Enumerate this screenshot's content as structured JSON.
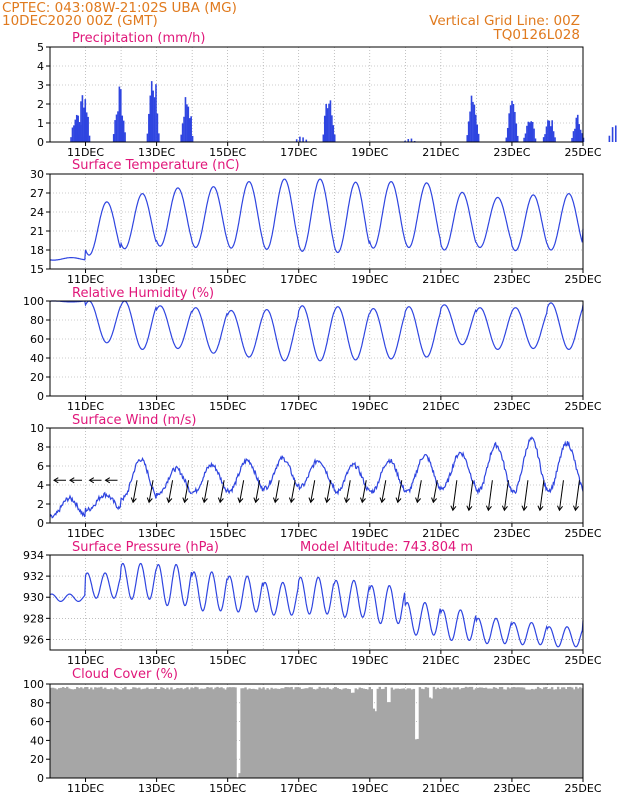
{
  "header": {
    "line1": "CPTEC:   043:08W-21:02S   UBA (MG)",
    "line2": "10DEC2020 00Z (GMT)",
    "right1": "Vertical Grid Line: 00Z",
    "right2": "TQ0126L028"
  },
  "colors": {
    "accent": "#e07a1e",
    "title": "#e0177a",
    "series": "#2f45e0",
    "cloud": "#a6a6a6"
  },
  "chart_data": [
    {
      "type": "bar",
      "title": "Precipitation (mm/h)",
      "ylim": [
        0,
        5
      ],
      "yticks": [
        0,
        1,
        2,
        3,
        4,
        5
      ],
      "xticks": [
        "11DEC",
        "13DEC",
        "15DEC",
        "17DEC",
        "19DEC",
        "21DEC",
        "23DEC",
        "25DEC"
      ],
      "x_days": [
        0,
        15
      ],
      "bursts": [
        {
          "day": 0.75,
          "peak": 1.9
        },
        {
          "day": 0.95,
          "peak": 3.1
        },
        {
          "day": 1.95,
          "peak": 3.0
        },
        {
          "day": 2.9,
          "peak": 4.0
        },
        {
          "day": 3.85,
          "peak": 2.8
        },
        {
          "day": 7.1,
          "peak": 0.4
        },
        {
          "day": 7.85,
          "peak": 3.1
        },
        {
          "day": 10.15,
          "peak": 0.2
        },
        {
          "day": 11.9,
          "peak": 2.8
        },
        {
          "day": 13.0,
          "peak": 2.2
        },
        {
          "day": 13.5,
          "peak": 1.6
        },
        {
          "day": 14.05,
          "peak": 1.5
        },
        {
          "day": 14.85,
          "peak": 1.5
        },
        {
          "day": 15.9,
          "peak": 1.0
        },
        {
          "day": 16.85,
          "peak": 0.9
        },
        {
          "day": 18.0,
          "peak": 2.2
        },
        {
          "day": 19.3,
          "peak": 1.4
        },
        {
          "day": 19.95,
          "peak": 0.9
        },
        {
          "day": 21.9,
          "peak": 1.9
        },
        {
          "day": 22.9,
          "peak": 1.1
        },
        {
          "day": 23.5,
          "peak": 0.8
        },
        {
          "day": 24.9,
          "peak": 1.8
        }
      ]
    },
    {
      "type": "line",
      "title": "Surface Temperature (nC)",
      "ylim": [
        15,
        30
      ],
      "yticks": [
        15,
        18,
        21,
        24,
        27,
        30
      ],
      "xticks": [
        "11DEC",
        "13DEC",
        "15DEC",
        "17DEC",
        "19DEC",
        "21DEC",
        "23DEC",
        "25DEC"
      ],
      "days": [
        0,
        15
      ],
      "daily_max": [
        16.8,
        25.6,
        26.9,
        27.8,
        28.0,
        28.8,
        29.2,
        29.2,
        28.7,
        28.8,
        28.6,
        27.1,
        26.3,
        26.7,
        26.9,
        26.6
      ],
      "daily_min": [
        16.4,
        17.2,
        18.2,
        18.6,
        18.4,
        18.3,
        18.1,
        17.8,
        17.6,
        18.3,
        18.4,
        18.0,
        18.4,
        17.9,
        18.0,
        20.8
      ]
    },
    {
      "type": "line",
      "title": "Relative Humidity (%)",
      "ylim": [
        0,
        100
      ],
      "yticks": [
        0,
        20,
        40,
        60,
        80,
        100
      ],
      "xticks": [
        "11DEC",
        "13DEC",
        "15DEC",
        "17DEC",
        "19DEC",
        "21DEC",
        "23DEC",
        "25DEC"
      ],
      "days": [
        0,
        15
      ],
      "daily_max": [
        100,
        100,
        100,
        95,
        93,
        90,
        91,
        95,
        94,
        92,
        94,
        96,
        93,
        93,
        98,
        100
      ],
      "daily_min": [
        99,
        56,
        49,
        50,
        45,
        41,
        37,
        37,
        38,
        39,
        41,
        54,
        49,
        50,
        49,
        60
      ]
    },
    {
      "type": "line",
      "title": "Surface Wind (m/s)",
      "ylim": [
        0,
        10
      ],
      "yticks": [
        0,
        2,
        4,
        6,
        8,
        10
      ],
      "xticks": [
        "11DEC",
        "13DEC",
        "15DEC",
        "17DEC",
        "19DEC",
        "21DEC",
        "23DEC",
        "25DEC"
      ],
      "days": [
        0,
        15
      ],
      "daily_max": [
        2.6,
        3.0,
        6.7,
        5.7,
        6.1,
        6.6,
        6.8,
        6.6,
        6.1,
        6.6,
        7.1,
        7.4,
        8.2,
        8.8,
        8.4,
        7.0
      ],
      "daily_min": [
        0.6,
        1.4,
        2.6,
        3.1,
        3.3,
        3.4,
        3.7,
        3.8,
        3.2,
        3.3,
        3.3,
        3.7,
        3.3,
        3.2,
        3.5,
        3.4
      ]
    },
    {
      "type": "line",
      "title": "Surface Pressure (hPa)",
      "annotation": "Model Altitude: 743.804 m",
      "ylim": [
        925,
        934
      ],
      "yticks": [
        926,
        928,
        930,
        932,
        934
      ],
      "xticks": [
        "11DEC",
        "13DEC",
        "15DEC",
        "17DEC",
        "19DEC",
        "21DEC",
        "23DEC",
        "25DEC"
      ],
      "days": [
        0,
        15
      ],
      "daily_max": [
        930.3,
        932.3,
        933.2,
        933.1,
        932.4,
        932.0,
        931.4,
        931.9,
        931.6,
        931.1,
        929.5,
        928.8,
        928.0,
        927.6,
        927.2,
        928.0
      ],
      "daily_min": [
        929.6,
        929.9,
        929.8,
        929.2,
        928.7,
        928.6,
        928.3,
        928.4,
        928.1,
        927.5,
        926.4,
        925.9,
        925.6,
        925.5,
        925.3,
        925.8
      ]
    },
    {
      "type": "area",
      "title": "Cloud Cover (%)",
      "ylim": [
        0,
        100
      ],
      "yticks": [
        0,
        20,
        40,
        60,
        80,
        100
      ],
      "xticks": [
        "11DEC",
        "13DEC",
        "15DEC",
        "17DEC",
        "19DEC",
        "21DEC",
        "23DEC",
        "25DEC"
      ],
      "days": [
        0,
        15
      ],
      "base_level": 97,
      "dips": [
        {
          "day": 5.25,
          "value": 0
        },
        {
          "day": 8.5,
          "value": 86
        },
        {
          "day": 9.1,
          "value": 70
        },
        {
          "day": 9.5,
          "value": 80
        },
        {
          "day": 10.3,
          "value": 40
        },
        {
          "day": 10.7,
          "value": 82
        }
      ]
    }
  ]
}
